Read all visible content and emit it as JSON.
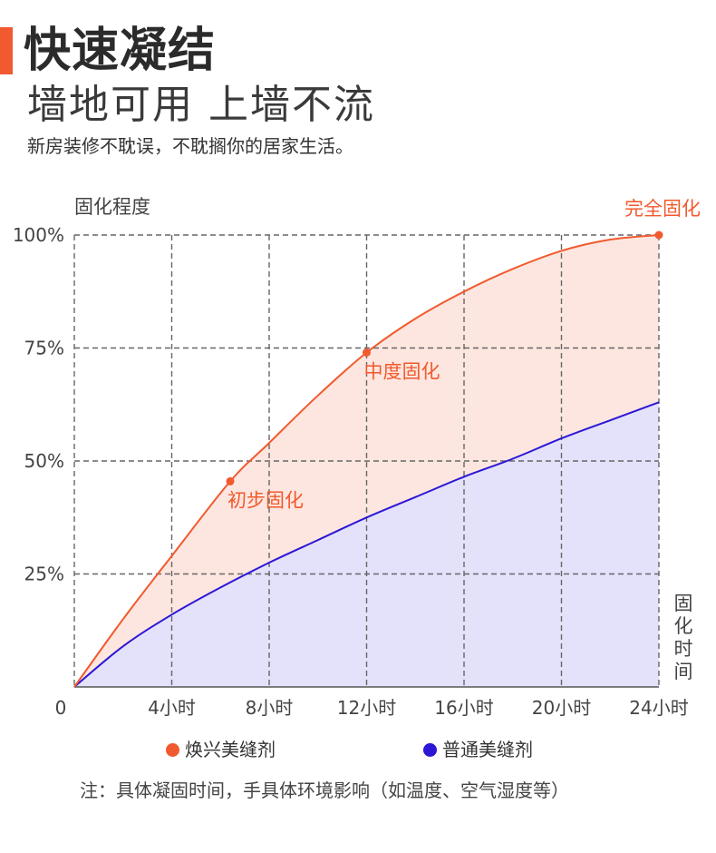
{
  "header": {
    "title": "快速凝结",
    "subtitle": "墙地可用 上墙不流",
    "tagline": "新房装修不耽误，不耽搁你的居家生活。"
  },
  "colors": {
    "accent": "#f05a2e",
    "series_fast_line": "#f05a2e",
    "series_fast_fill": "#fde6df",
    "series_normal_line": "#2c17d6",
    "series_normal_fill": "#e4e1fb",
    "grid": "#666666"
  },
  "chart_data": {
    "type": "area",
    "ylabel": "固化程度",
    "xlabel": "固化时间",
    "origin_label": "0",
    "x_ticks": [
      4,
      8,
      12,
      16,
      20,
      24
    ],
    "x_tick_labels": [
      "4小时",
      "8小时",
      "12小时",
      "16小时",
      "20小时",
      "24小时"
    ],
    "y_ticks": [
      25,
      50,
      75,
      100
    ],
    "y_tick_labels": [
      "25%",
      "50%",
      "75%",
      "100%"
    ],
    "xlim": [
      0,
      24
    ],
    "ylim": [
      0,
      100
    ],
    "grid": true,
    "legend_position": "bottom",
    "series": [
      {
        "name": "焕兴美缝剂",
        "color": "#f05a2e",
        "x": [
          0,
          2,
          4,
          6.4,
          8,
          10,
          12,
          14,
          16,
          18,
          20,
          22,
          24
        ],
        "y": [
          0,
          15,
          29,
          45.5,
          54,
          64.5,
          74,
          81.5,
          87.5,
          92.5,
          96.5,
          99,
          100
        ]
      },
      {
        "name": "普通美缝剂",
        "color": "#2c17d6",
        "x": [
          0,
          2,
          4,
          6,
          8,
          10,
          12,
          14,
          16,
          18,
          20,
          22,
          24
        ],
        "y": [
          0,
          9,
          16,
          22,
          27.5,
          32.5,
          37.5,
          42,
          46.5,
          50.5,
          55,
          59,
          63
        ]
      }
    ],
    "annotations": [
      {
        "text": "初步固化",
        "x": 6.4,
        "y": 45.5
      },
      {
        "text": "中度固化",
        "x": 12,
        "y": 74
      },
      {
        "text": "完全固化",
        "x": 24,
        "y": 100
      }
    ]
  },
  "legend": {
    "items": [
      {
        "label": "焕兴美缝剂",
        "color": "#f05a2e"
      },
      {
        "label": "普通美缝剂",
        "color": "#2c17d6"
      }
    ]
  },
  "footer": {
    "note": "注：具体凝固时间，手具体环境影响（如温度、空气湿度等）"
  }
}
